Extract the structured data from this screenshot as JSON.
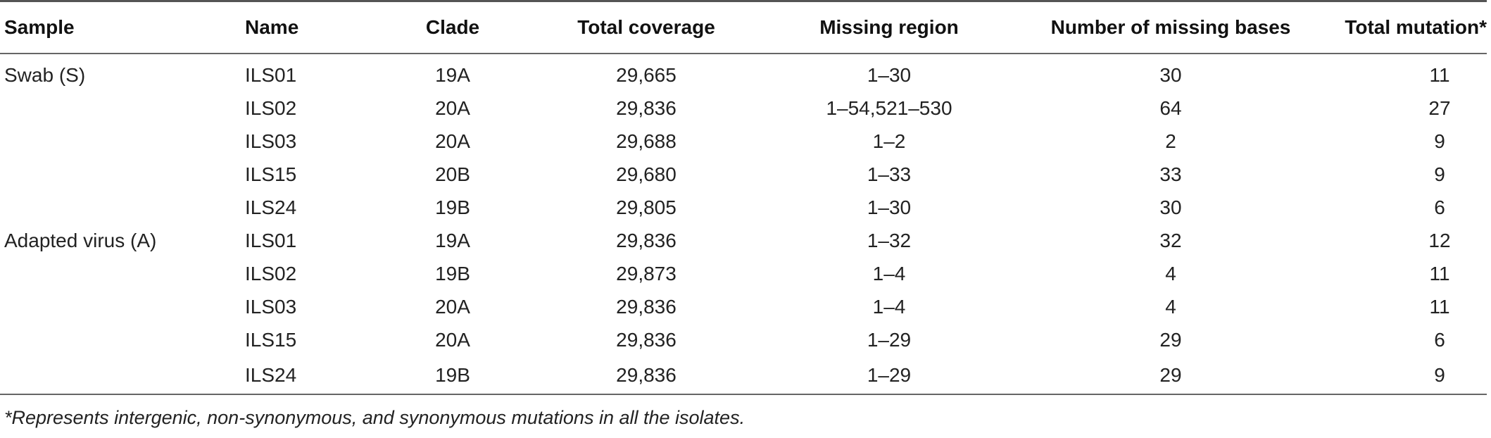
{
  "table": {
    "headers": {
      "sample": "Sample",
      "name": "Name",
      "clade": "Clade",
      "total_coverage": "Total coverage",
      "missing_region": "Missing region",
      "missing_bases": "Number of missing bases",
      "total_mutation": "Total mutation*"
    },
    "rows": [
      {
        "sample": "Swab (S)",
        "name": "ILS01",
        "clade": "19A",
        "total_coverage": "29,665",
        "missing_region": "1–30",
        "missing_bases": "30",
        "total_mutation": "11"
      },
      {
        "sample": "",
        "name": "ILS02",
        "clade": "20A",
        "total_coverage": "29,836",
        "missing_region": "1–54,521–530",
        "missing_bases": "64",
        "total_mutation": "27"
      },
      {
        "sample": "",
        "name": "ILS03",
        "clade": "20A",
        "total_coverage": "29,688",
        "missing_region": "1–2",
        "missing_bases": "2",
        "total_mutation": "9"
      },
      {
        "sample": "",
        "name": "ILS15",
        "clade": "20B",
        "total_coverage": "29,680",
        "missing_region": "1–33",
        "missing_bases": "33",
        "total_mutation": "9"
      },
      {
        "sample": "",
        "name": "ILS24",
        "clade": "19B",
        "total_coverage": "29,805",
        "missing_region": "1–30",
        "missing_bases": "30",
        "total_mutation": "6"
      },
      {
        "sample": "Adapted virus (A)",
        "name": "ILS01",
        "clade": "19A",
        "total_coverage": "29,836",
        "missing_region": "1–32",
        "missing_bases": "32",
        "total_mutation": "12"
      },
      {
        "sample": "",
        "name": "ILS02",
        "clade": "19B",
        "total_coverage": "29,873",
        "missing_region": "1–4",
        "missing_bases": "4",
        "total_mutation": "11"
      },
      {
        "sample": "",
        "name": "ILS03",
        "clade": "20A",
        "total_coverage": "29,836",
        "missing_region": "1–4",
        "missing_bases": "4",
        "total_mutation": "11"
      },
      {
        "sample": "",
        "name": "ILS15",
        "clade": "20A",
        "total_coverage": "29,836",
        "missing_region": "1–29",
        "missing_bases": "29",
        "total_mutation": "6"
      },
      {
        "sample": "",
        "name": "ILS24",
        "clade": "19B",
        "total_coverage": "29,836",
        "missing_region": "1–29",
        "missing_bases": "29",
        "total_mutation": "9"
      }
    ]
  },
  "footnote": "*Represents intergenic, non-synonymous, and synonymous mutations in all the isolates."
}
